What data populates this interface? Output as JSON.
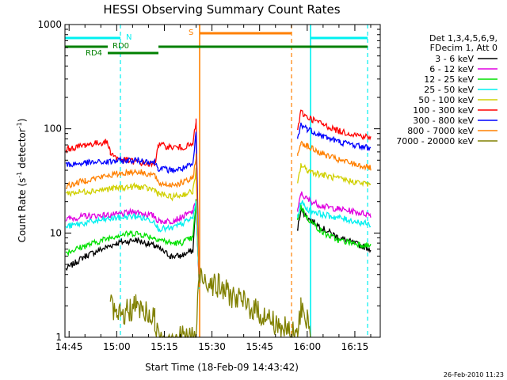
{
  "chart_data": {
    "type": "line",
    "title": "HESSI Observing Summary Count Rates",
    "xlabel": "Start Time (18-Feb-09 14:43:42)",
    "ylabel": {
      "prefix": "Count Rate (s",
      "sup1": "-1",
      "mid": " detector",
      "sup2": "-1",
      "suffix": ")"
    },
    "yscale": "log",
    "ylim": [
      1,
      1000
    ],
    "yticks": [
      {
        "v": 1,
        "label": "1"
      },
      {
        "v": 10,
        "label": "10"
      },
      {
        "v": 100,
        "label": "100"
      },
      {
        "v": 1000,
        "label": "1000"
      }
    ],
    "xlim": [
      "14:43:42",
      "16:23:00"
    ],
    "xticks": [
      "14:45",
      "15:00",
      "15:15",
      "15:30",
      "15:45",
      "16:00",
      "16:15"
    ],
    "legend_position": "right",
    "legend_header": [
      "Det 1,3,4,5,6,9,",
      "FDecim 1, Att 0"
    ],
    "series": [
      {
        "name": "3 - 6 keV",
        "color": "#000000",
        "values": [
          {
            "t": "14:44",
            "v": 4.5
          },
          {
            "t": "14:50",
            "v": 6.0
          },
          {
            "t": "15:00",
            "v": 8.0
          },
          {
            "t": "15:06",
            "v": 8.6
          },
          {
            "t": "15:12",
            "v": 7.5
          },
          {
            "t": "15:17",
            "v": 6.0
          },
          {
            "t": "15:20",
            "v": 6.0
          },
          {
            "t": "15:24",
            "v": 6.8
          },
          {
            "t": "15:25",
            "v": 20.0
          },
          {
            "t": "15:26",
            "v": 3.0
          },
          {
            "t": "15:57",
            "v": 11.0
          },
          {
            "t": "15:58",
            "v": 17.0
          },
          {
            "t": "16:00",
            "v": 14.0
          },
          {
            "t": "16:05",
            "v": 11.0
          },
          {
            "t": "16:10",
            "v": 9.0
          },
          {
            "t": "16:20",
            "v": 7.0
          }
        ]
      },
      {
        "name": "6 - 12 keV",
        "color": "#e000e0",
        "values": [
          {
            "t": "14:44",
            "v": 13.5
          },
          {
            "t": "14:50",
            "v": 14.5
          },
          {
            "t": "15:00",
            "v": 15.0
          },
          {
            "t": "15:06",
            "v": 16.0
          },
          {
            "t": "15:12",
            "v": 14.5
          },
          {
            "t": "15:13",
            "v": 13.0
          },
          {
            "t": "15:17",
            "v": 13.0
          },
          {
            "t": "15:20",
            "v": 14.0
          },
          {
            "t": "15:24",
            "v": 16.0
          },
          {
            "t": "15:25",
            "v": 20.0
          },
          {
            "t": "15:26",
            "v": 3.0
          },
          {
            "t": "15:57",
            "v": 16.0
          },
          {
            "t": "15:58",
            "v": 24.0
          },
          {
            "t": "16:00",
            "v": 21.0
          },
          {
            "t": "16:05",
            "v": 18.0
          },
          {
            "t": "16:10",
            "v": 17.0
          },
          {
            "t": "16:20",
            "v": 15.0
          }
        ]
      },
      {
        "name": "12 - 25 keV",
        "color": "#00e000",
        "values": [
          {
            "t": "14:44",
            "v": 6.5
          },
          {
            "t": "14:50",
            "v": 7.5
          },
          {
            "t": "15:00",
            "v": 9.5
          },
          {
            "t": "15:06",
            "v": 10.0
          },
          {
            "t": "15:12",
            "v": 9.0
          },
          {
            "t": "15:17",
            "v": 8.0
          },
          {
            "t": "15:20",
            "v": 8.0
          },
          {
            "t": "15:24",
            "v": 9.0
          },
          {
            "t": "15:25",
            "v": 20.0
          },
          {
            "t": "15:26",
            "v": 3.0
          },
          {
            "t": "15:57",
            "v": 14.0
          },
          {
            "t": "15:58",
            "v": 18.0
          },
          {
            "t": "16:00",
            "v": 14.0
          },
          {
            "t": "16:05",
            "v": 10.0
          },
          {
            "t": "16:10",
            "v": 8.5
          },
          {
            "t": "16:20",
            "v": 7.5
          }
        ]
      },
      {
        "name": "25 - 50 keV",
        "color": "#00f0f0",
        "values": [
          {
            "t": "14:44",
            "v": 11.5
          },
          {
            "t": "14:50",
            "v": 12.5
          },
          {
            "t": "15:00",
            "v": 14.0
          },
          {
            "t": "15:06",
            "v": 14.5
          },
          {
            "t": "15:12",
            "v": 13.0
          },
          {
            "t": "15:13",
            "v": 11.0
          },
          {
            "t": "15:17",
            "v": 11.0
          },
          {
            "t": "15:20",
            "v": 12.0
          },
          {
            "t": "15:24",
            "v": 14.0
          },
          {
            "t": "15:25",
            "v": 20.0
          },
          {
            "t": "15:26",
            "v": 3.0
          },
          {
            "t": "15:57",
            "v": 14.0
          },
          {
            "t": "15:58",
            "v": 20.0
          },
          {
            "t": "16:00",
            "v": 17.0
          },
          {
            "t": "16:05",
            "v": 15.0
          },
          {
            "t": "16:10",
            "v": 14.0
          },
          {
            "t": "16:20",
            "v": 12.0
          }
        ]
      },
      {
        "name": "50 - 100 keV",
        "color": "#d0d000",
        "values": [
          {
            "t": "14:44",
            "v": 24.0
          },
          {
            "t": "14:50",
            "v": 25.0
          },
          {
            "t": "15:00",
            "v": 27.0
          },
          {
            "t": "15:06",
            "v": 28.0
          },
          {
            "t": "15:12",
            "v": 26.0
          },
          {
            "t": "15:13",
            "v": 24.0
          },
          {
            "t": "15:17",
            "v": 22.0
          },
          {
            "t": "15:20",
            "v": 23.0
          },
          {
            "t": "15:24",
            "v": 25.0
          },
          {
            "t": "15:25",
            "v": 40.0
          },
          {
            "t": "15:26",
            "v": 3.0
          },
          {
            "t": "15:57",
            "v": 30.0
          },
          {
            "t": "15:58",
            "v": 45.0
          },
          {
            "t": "16:00",
            "v": 40.0
          },
          {
            "t": "16:05",
            "v": 36.0
          },
          {
            "t": "16:10",
            "v": 33.0
          },
          {
            "t": "16:20",
            "v": 29.0
          }
        ]
      },
      {
        "name": "100 - 300 keV",
        "color": "#ff0000",
        "values": [
          {
            "t": "14:44",
            "v": 63.0
          },
          {
            "t": "14:50",
            "v": 70.0
          },
          {
            "t": "14:57",
            "v": 75.0
          },
          {
            "t": "14:58",
            "v": 60.0
          },
          {
            "t": "15:00",
            "v": 52.0
          },
          {
            "t": "15:06",
            "v": 48.0
          },
          {
            "t": "15:12",
            "v": 45.0
          },
          {
            "t": "15:13",
            "v": 70.0
          },
          {
            "t": "15:17",
            "v": 67.0
          },
          {
            "t": "15:20",
            "v": 66.0
          },
          {
            "t": "15:24",
            "v": 70.0
          },
          {
            "t": "15:25",
            "v": 120.0
          },
          {
            "t": "15:26",
            "v": 3.0
          },
          {
            "t": "15:57",
            "v": 100.0
          },
          {
            "t": "15:58",
            "v": 145.0
          },
          {
            "t": "16:00",
            "v": 130.0
          },
          {
            "t": "16:05",
            "v": 110.0
          },
          {
            "t": "16:10",
            "v": 95.0
          },
          {
            "t": "16:20",
            "v": 82.0
          }
        ]
      },
      {
        "name": "300 - 800 keV",
        "color": "#0000ff",
        "values": [
          {
            "t": "14:44",
            "v": 45.0
          },
          {
            "t": "14:50",
            "v": 47.0
          },
          {
            "t": "14:57",
            "v": 48.0
          },
          {
            "t": "15:00",
            "v": 49.0
          },
          {
            "t": "15:06",
            "v": 50.0
          },
          {
            "t": "15:12",
            "v": 48.0
          },
          {
            "t": "15:13",
            "v": 42.0
          },
          {
            "t": "15:17",
            "v": 40.0
          },
          {
            "t": "15:20",
            "v": 41.0
          },
          {
            "t": "15:24",
            "v": 45.0
          },
          {
            "t": "15:25",
            "v": 90.0
          },
          {
            "t": "15:26",
            "v": 3.0
          },
          {
            "t": "15:57",
            "v": 80.0
          },
          {
            "t": "15:58",
            "v": 110.0
          },
          {
            "t": "16:00",
            "v": 100.0
          },
          {
            "t": "16:05",
            "v": 85.0
          },
          {
            "t": "16:10",
            "v": 75.0
          },
          {
            "t": "16:20",
            "v": 65.0
          }
        ]
      },
      {
        "name": "800 - 7000 keV",
        "color": "#ff8000",
        "values": [
          {
            "t": "14:44",
            "v": 28.0
          },
          {
            "t": "14:50",
            "v": 32.0
          },
          {
            "t": "15:00",
            "v": 37.0
          },
          {
            "t": "15:06",
            "v": 39.0
          },
          {
            "t": "15:12",
            "v": 36.0
          },
          {
            "t": "15:13",
            "v": 30.0
          },
          {
            "t": "15:17",
            "v": 29.0
          },
          {
            "t": "15:20",
            "v": 30.0
          },
          {
            "t": "15:24",
            "v": 33.0
          },
          {
            "t": "15:25",
            "v": 55.0
          },
          {
            "t": "15:26",
            "v": 3.0
          },
          {
            "t": "15:57",
            "v": 55.0
          },
          {
            "t": "15:58",
            "v": 75.0
          },
          {
            "t": "16:00",
            "v": 68.0
          },
          {
            "t": "16:05",
            "v": 57.0
          },
          {
            "t": "16:10",
            "v": 50.0
          },
          {
            "t": "16:20",
            "v": 42.0
          }
        ]
      },
      {
        "name": "7000 - 20000 keV",
        "color": "#808000",
        "values": [
          {
            "t": "14:58",
            "v": 2.0
          },
          {
            "t": "15:00",
            "v": 1.5
          },
          {
            "t": "15:06",
            "v": 2.0
          },
          {
            "t": "15:12",
            "v": 1.5
          },
          {
            "t": "15:13",
            "v": 1.0
          },
          {
            "t": "15:25",
            "v": 1.0
          },
          {
            "t": "15:26",
            "v": 4.0
          },
          {
            "t": "15:57",
            "v": 1.0
          },
          {
            "t": "15:58",
            "v": 2.0
          },
          {
            "t": "16:00",
            "v": 1.5
          },
          {
            "t": "16:01",
            "v": 1.0
          }
        ]
      }
    ],
    "annotations": [
      {
        "label": "N",
        "color": "#00f0f0"
      },
      {
        "label": "RD0",
        "color": "#008000"
      },
      {
        "label": "RD4",
        "color": "#008000"
      },
      {
        "label": "S",
        "color": "#ff8000"
      }
    ],
    "stamp": "26-Feb-2010 11:23"
  }
}
